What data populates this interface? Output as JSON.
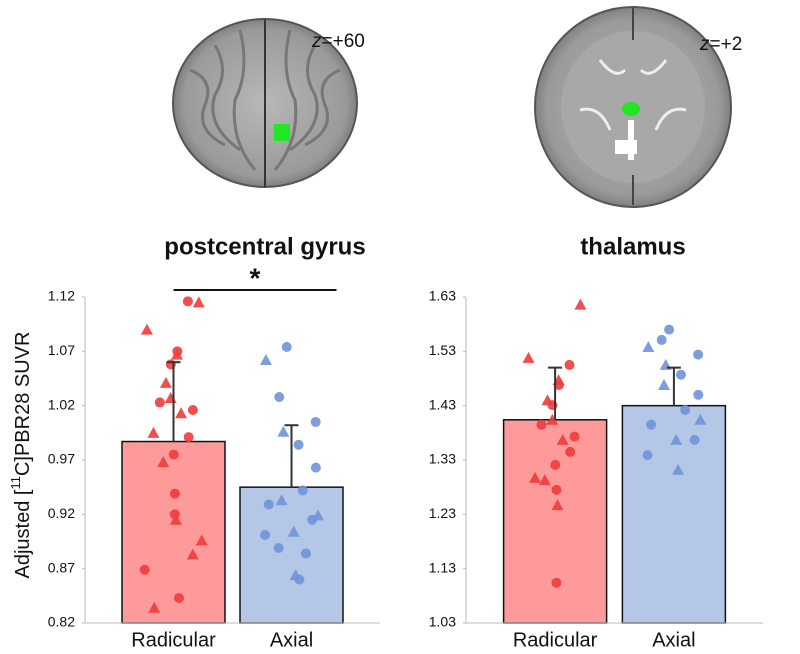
{
  "chart_data": [
    {
      "type": "bar",
      "title": "postcentral gyrus",
      "slice_label": {
        "axis": "z",
        "value": "=+60"
      },
      "ylabel": {
        "prefix": "Adjusted [",
        "superscript": "11",
        "suffix": "C]PBR28 SUVR"
      },
      "annotation": "*",
      "categories": [
        "Radicular",
        "Axial"
      ],
      "values": [
        0.987,
        0.945
      ],
      "errors": [
        0.073,
        0.057
      ],
      "colors": [
        "#ff9a9a",
        "#b4c7e7"
      ],
      "point_colors": [
        "#f03c3c",
        "#6f93d8"
      ],
      "points": [
        {
          "triangles": [
            1.115,
            1.09,
            1.067,
            1.041,
            1.027,
            1.013,
            0.995,
            0.968,
            0.915,
            0.896,
            0.883,
            0.834
          ],
          "circles": [
            1.116,
            1.07,
            1.058,
            1.023,
            1.016,
            0.991,
            0.975,
            0.939,
            0.92,
            0.869,
            0.843
          ]
        },
        {
          "triangles": [
            1.062,
            0.996,
            0.933,
            0.919,
            0.904,
            0.864
          ],
          "circles": [
            1.074,
            1.028,
            1.005,
            0.984,
            0.963,
            0.942,
            0.929,
            0.915,
            0.901,
            0.889,
            0.884,
            0.86
          ]
        }
      ],
      "ylim": [
        0.82,
        1.12
      ],
      "yticks": [
        0.82,
        0.87,
        0.92,
        0.97,
        1.02,
        1.07,
        1.12
      ],
      "grid": false
    },
    {
      "type": "bar",
      "title": "thalamus",
      "slice_label": {
        "axis": "z",
        "value": "=+2"
      },
      "categories": [
        "Radicular",
        "Axial"
      ],
      "values": [
        1.404,
        1.43
      ],
      "errors": [
        0.096,
        0.07
      ],
      "colors": [
        "#ff9a9a",
        "#b4c7e7"
      ],
      "point_colors": [
        "#f03c3c",
        "#6f93d8"
      ],
      "points": [
        {
          "triangles": [
            1.616,
            1.518,
            1.477,
            1.44,
            1.404,
            1.367,
            1.297,
            1.293,
            1.247
          ],
          "circles": [
            1.505,
            1.468,
            1.431,
            1.395,
            1.373,
            1.345,
            1.321,
            1.275,
            1.104
          ]
        },
        {
          "triangles": [
            1.538,
            1.505,
            1.468,
            1.404,
            1.367,
            1.312
          ],
          "circles": [
            1.57,
            1.551,
            1.524,
            1.487,
            1.45,
            1.422,
            1.395,
            1.367,
            1.339
          ]
        }
      ],
      "ylim": [
        1.03,
        1.63
      ],
      "yticks": [
        1.03,
        1.13,
        1.23,
        1.33,
        1.43,
        1.53,
        1.63
      ],
      "grid": false
    }
  ]
}
